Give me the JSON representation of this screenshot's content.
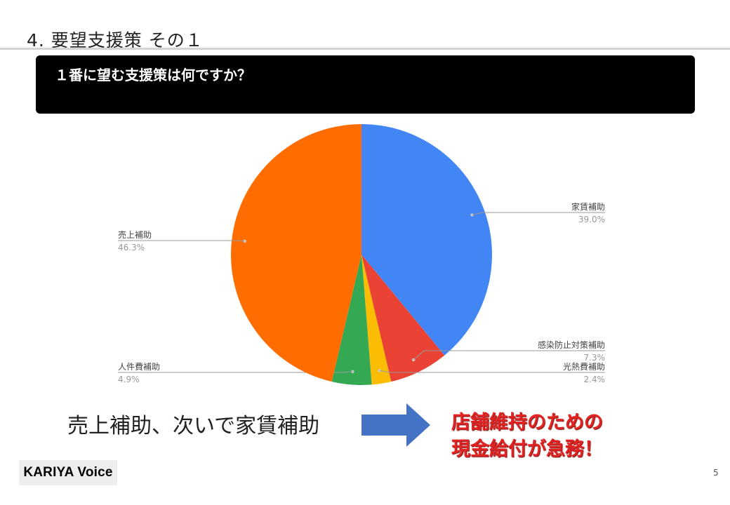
{
  "slide": {
    "title": "4. 要望支援策 その１",
    "question": "１番に望む支援策は何ですか？",
    "summary": "売上補助、次いで家賃補助",
    "callout_line1": "店舗維持のための",
    "callout_line2": "現金給付が急務！",
    "brand": "KARIYA Voice",
    "page_number": "5"
  },
  "chart_data": {
    "type": "pie",
    "title": "",
    "slices": [
      {
        "label": "家賃補助",
        "value": 39.0,
        "display": "39.0%",
        "color": "#4285f4"
      },
      {
        "label": "感染防止対策補助",
        "value": 7.3,
        "display": "7.3%",
        "color": "#ea4335"
      },
      {
        "label": "光熱費補助",
        "value": 2.4,
        "display": "2.4%",
        "color": "#fbbc04"
      },
      {
        "label": "人件費補助",
        "value": 4.9,
        "display": "4.9%",
        "color": "#34a853"
      },
      {
        "label": "売上補助",
        "value": 46.3,
        "display": "46.3%",
        "color": "#ff6d01"
      }
    ]
  },
  "colors": {
    "arrow": "#4472c4",
    "callout": "#e32222",
    "leader_line": "#999999",
    "label_text": "#444444",
    "value_text": "#999999"
  }
}
